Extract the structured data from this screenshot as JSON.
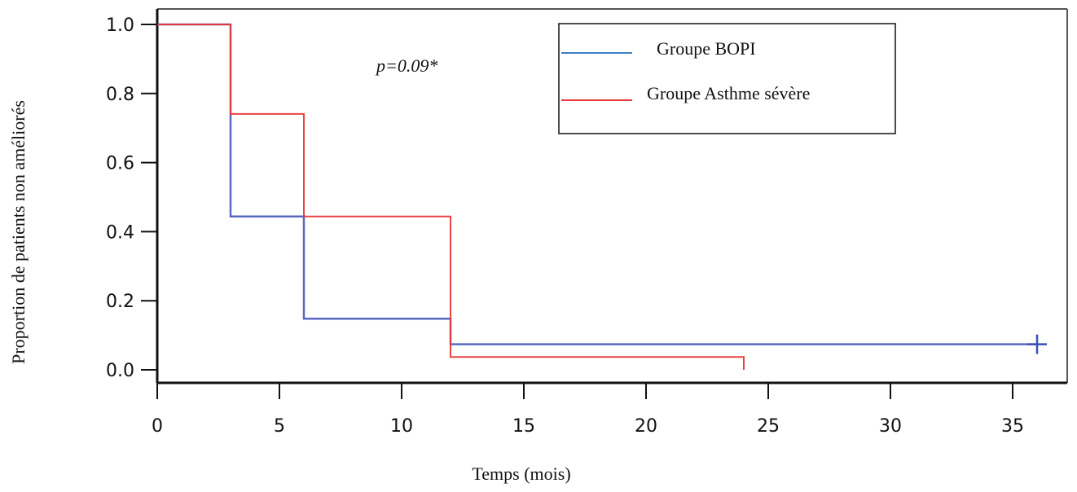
{
  "chart_data": {
    "type": "line",
    "step": true,
    "title": "",
    "xlabel": "Temps (mois)",
    "ylabel": "Proportion de patients non  améliorés",
    "xlim": [
      0,
      36
    ],
    "ylim": [
      0,
      1
    ],
    "x_ticks": [
      "0",
      "5",
      "10",
      "15",
      "20",
      "25",
      "30",
      "35"
    ],
    "y_ticks": [
      "0.0",
      "0.2",
      "0.4",
      "0.6",
      "0.8",
      "1.0"
    ],
    "annotation": "p=0.09*",
    "legend_position": "top-right",
    "grid": false,
    "series": [
      {
        "name": "Groupe BOPI",
        "color": "#3b4fb8",
        "points": [
          [
            0,
            1.0
          ],
          [
            3,
            0.444
          ],
          [
            6,
            0.148
          ],
          [
            12,
            0.074
          ],
          [
            36,
            0.074
          ]
        ],
        "censored": [
          [
            36,
            0.074
          ]
        ]
      },
      {
        "name": "Groupe Asthme sévère",
        "color": "#e8383b",
        "points": [
          [
            0,
            1.0
          ],
          [
            3,
            0.741
          ],
          [
            6,
            0.444
          ],
          [
            12,
            0.037
          ],
          [
            24,
            0.0
          ]
        ],
        "censored": []
      }
    ]
  }
}
